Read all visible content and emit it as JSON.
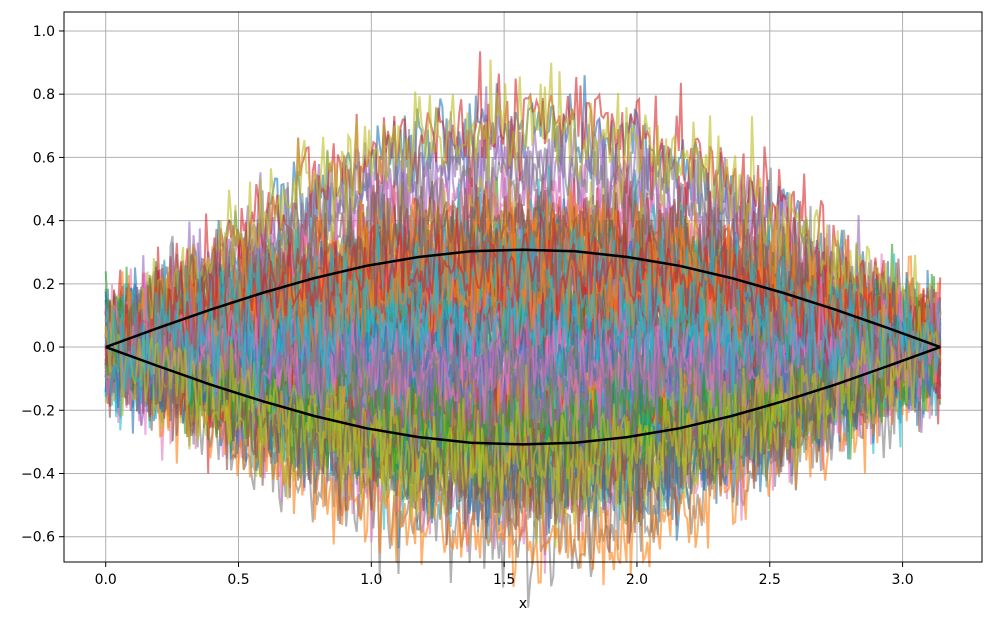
{
  "chart_data": {
    "type": "line",
    "title": "",
    "xlabel": "x",
    "ylabel": "",
    "xlim": [
      -0.157,
      3.299
    ],
    "ylim": [
      -0.68,
      1.06
    ],
    "grid": true,
    "xticks": [
      0.0,
      0.5,
      1.0,
      1.5,
      2.0,
      2.5,
      3.0
    ],
    "xtick_labels": [
      "0.0",
      "0.5",
      "1.0",
      "1.5",
      "2.0",
      "2.5",
      "3.0"
    ],
    "yticks": [
      -0.6,
      -0.4,
      -0.2,
      0.0,
      0.2,
      0.4,
      0.6,
      0.8,
      1.0
    ],
    "ytick_labels": [
      "−0.6",
      "−0.4",
      "−0.2",
      "0.0",
      "0.2",
      "0.4",
      "0.6",
      "0.8",
      "1.0"
    ],
    "noisy_samples": {
      "count": 100,
      "alpha": 0.6,
      "x_range": [
        0,
        3.1416
      ],
      "points_per_series": 400,
      "colors": [
        "#1f77b4",
        "#ff7f0e",
        "#2ca02c",
        "#d62728",
        "#9467bd",
        "#8c564b",
        "#e377c2",
        "#7f7f7f",
        "#bcbd22",
        "#17becf"
      ]
    },
    "series": [
      {
        "color": "#000000",
        "x": [
          0.0,
          0.1963,
          0.3927,
          0.589,
          0.7854,
          0.9817,
          1.1781,
          1.3744,
          1.5708,
          1.7671,
          1.9635,
          2.1598,
          2.3562,
          2.5525,
          2.7489,
          2.9452,
          3.1416
        ],
        "y": [
          0.0,
          0.06,
          0.118,
          0.171,
          0.218,
          0.257,
          0.285,
          0.303,
          0.308,
          0.303,
          0.285,
          0.257,
          0.218,
          0.171,
          0.118,
          0.06,
          0.0
        ]
      },
      {
        "color": "#000000",
        "x": [
          0.0,
          0.1963,
          0.3927,
          0.589,
          0.7854,
          0.9817,
          1.1781,
          1.3744,
          1.5708,
          1.7671,
          1.9635,
          2.1598,
          2.3562,
          2.5525,
          2.7489,
          2.9452,
          3.1416
        ],
        "y": [
          0.0,
          -0.06,
          -0.118,
          -0.171,
          -0.218,
          -0.257,
          -0.285,
          -0.303,
          -0.308,
          -0.303,
          -0.285,
          -0.257,
          -0.218,
          -0.171,
          -0.118,
          -0.06,
          0.0
        ]
      }
    ]
  }
}
